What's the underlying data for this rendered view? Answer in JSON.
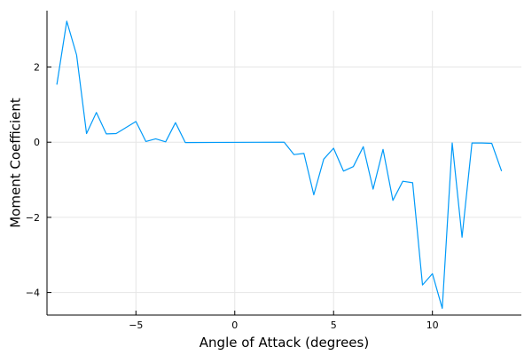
{
  "chart_data": {
    "type": "line",
    "title": "",
    "xlabel": "Angle of Attack (degrees)",
    "ylabel": "Moment Coefficient",
    "xlim": [
      -9.5,
      14.5
    ],
    "ylim": [
      -4.6,
      3.5
    ],
    "xticks": [
      -5,
      0,
      5,
      10
    ],
    "yticks": [
      -4,
      -2,
      0,
      2
    ],
    "xtick_labels": [
      "−5",
      "0",
      "5",
      "10"
    ],
    "ytick_labels": [
      "−4",
      "−2",
      "0",
      "2"
    ],
    "grid": true,
    "legend": "none",
    "series": [
      {
        "color": "#009af9",
        "x": [
          -9,
          -8.5,
          -8,
          -7.5,
          -7,
          -6.5,
          -6,
          -5,
          -4.5,
          -4,
          -3.5,
          -3,
          -2.5,
          2.5,
          3,
          3.5,
          4,
          4.5,
          5,
          5.5,
          6,
          6.5,
          7,
          7.5,
          8,
          8.5,
          9,
          9.5,
          10,
          10.5,
          11,
          11.5,
          12,
          12.5,
          13,
          13.5
        ],
        "y": [
          1.53,
          3.22,
          2.32,
          0.23,
          0.79,
          0.22,
          0.23,
          0.55,
          0.02,
          0.09,
          0.01,
          0.52,
          -0.01,
          0.0,
          -0.33,
          -0.3,
          -1.4,
          -0.45,
          -0.16,
          -0.77,
          -0.65,
          -0.12,
          -1.25,
          -0.19,
          -1.55,
          -1.04,
          -1.08,
          -3.8,
          -3.5,
          -4.42,
          -0.02,
          -2.53,
          -0.02,
          -0.02,
          -0.03,
          -0.77
        ]
      }
    ]
  }
}
